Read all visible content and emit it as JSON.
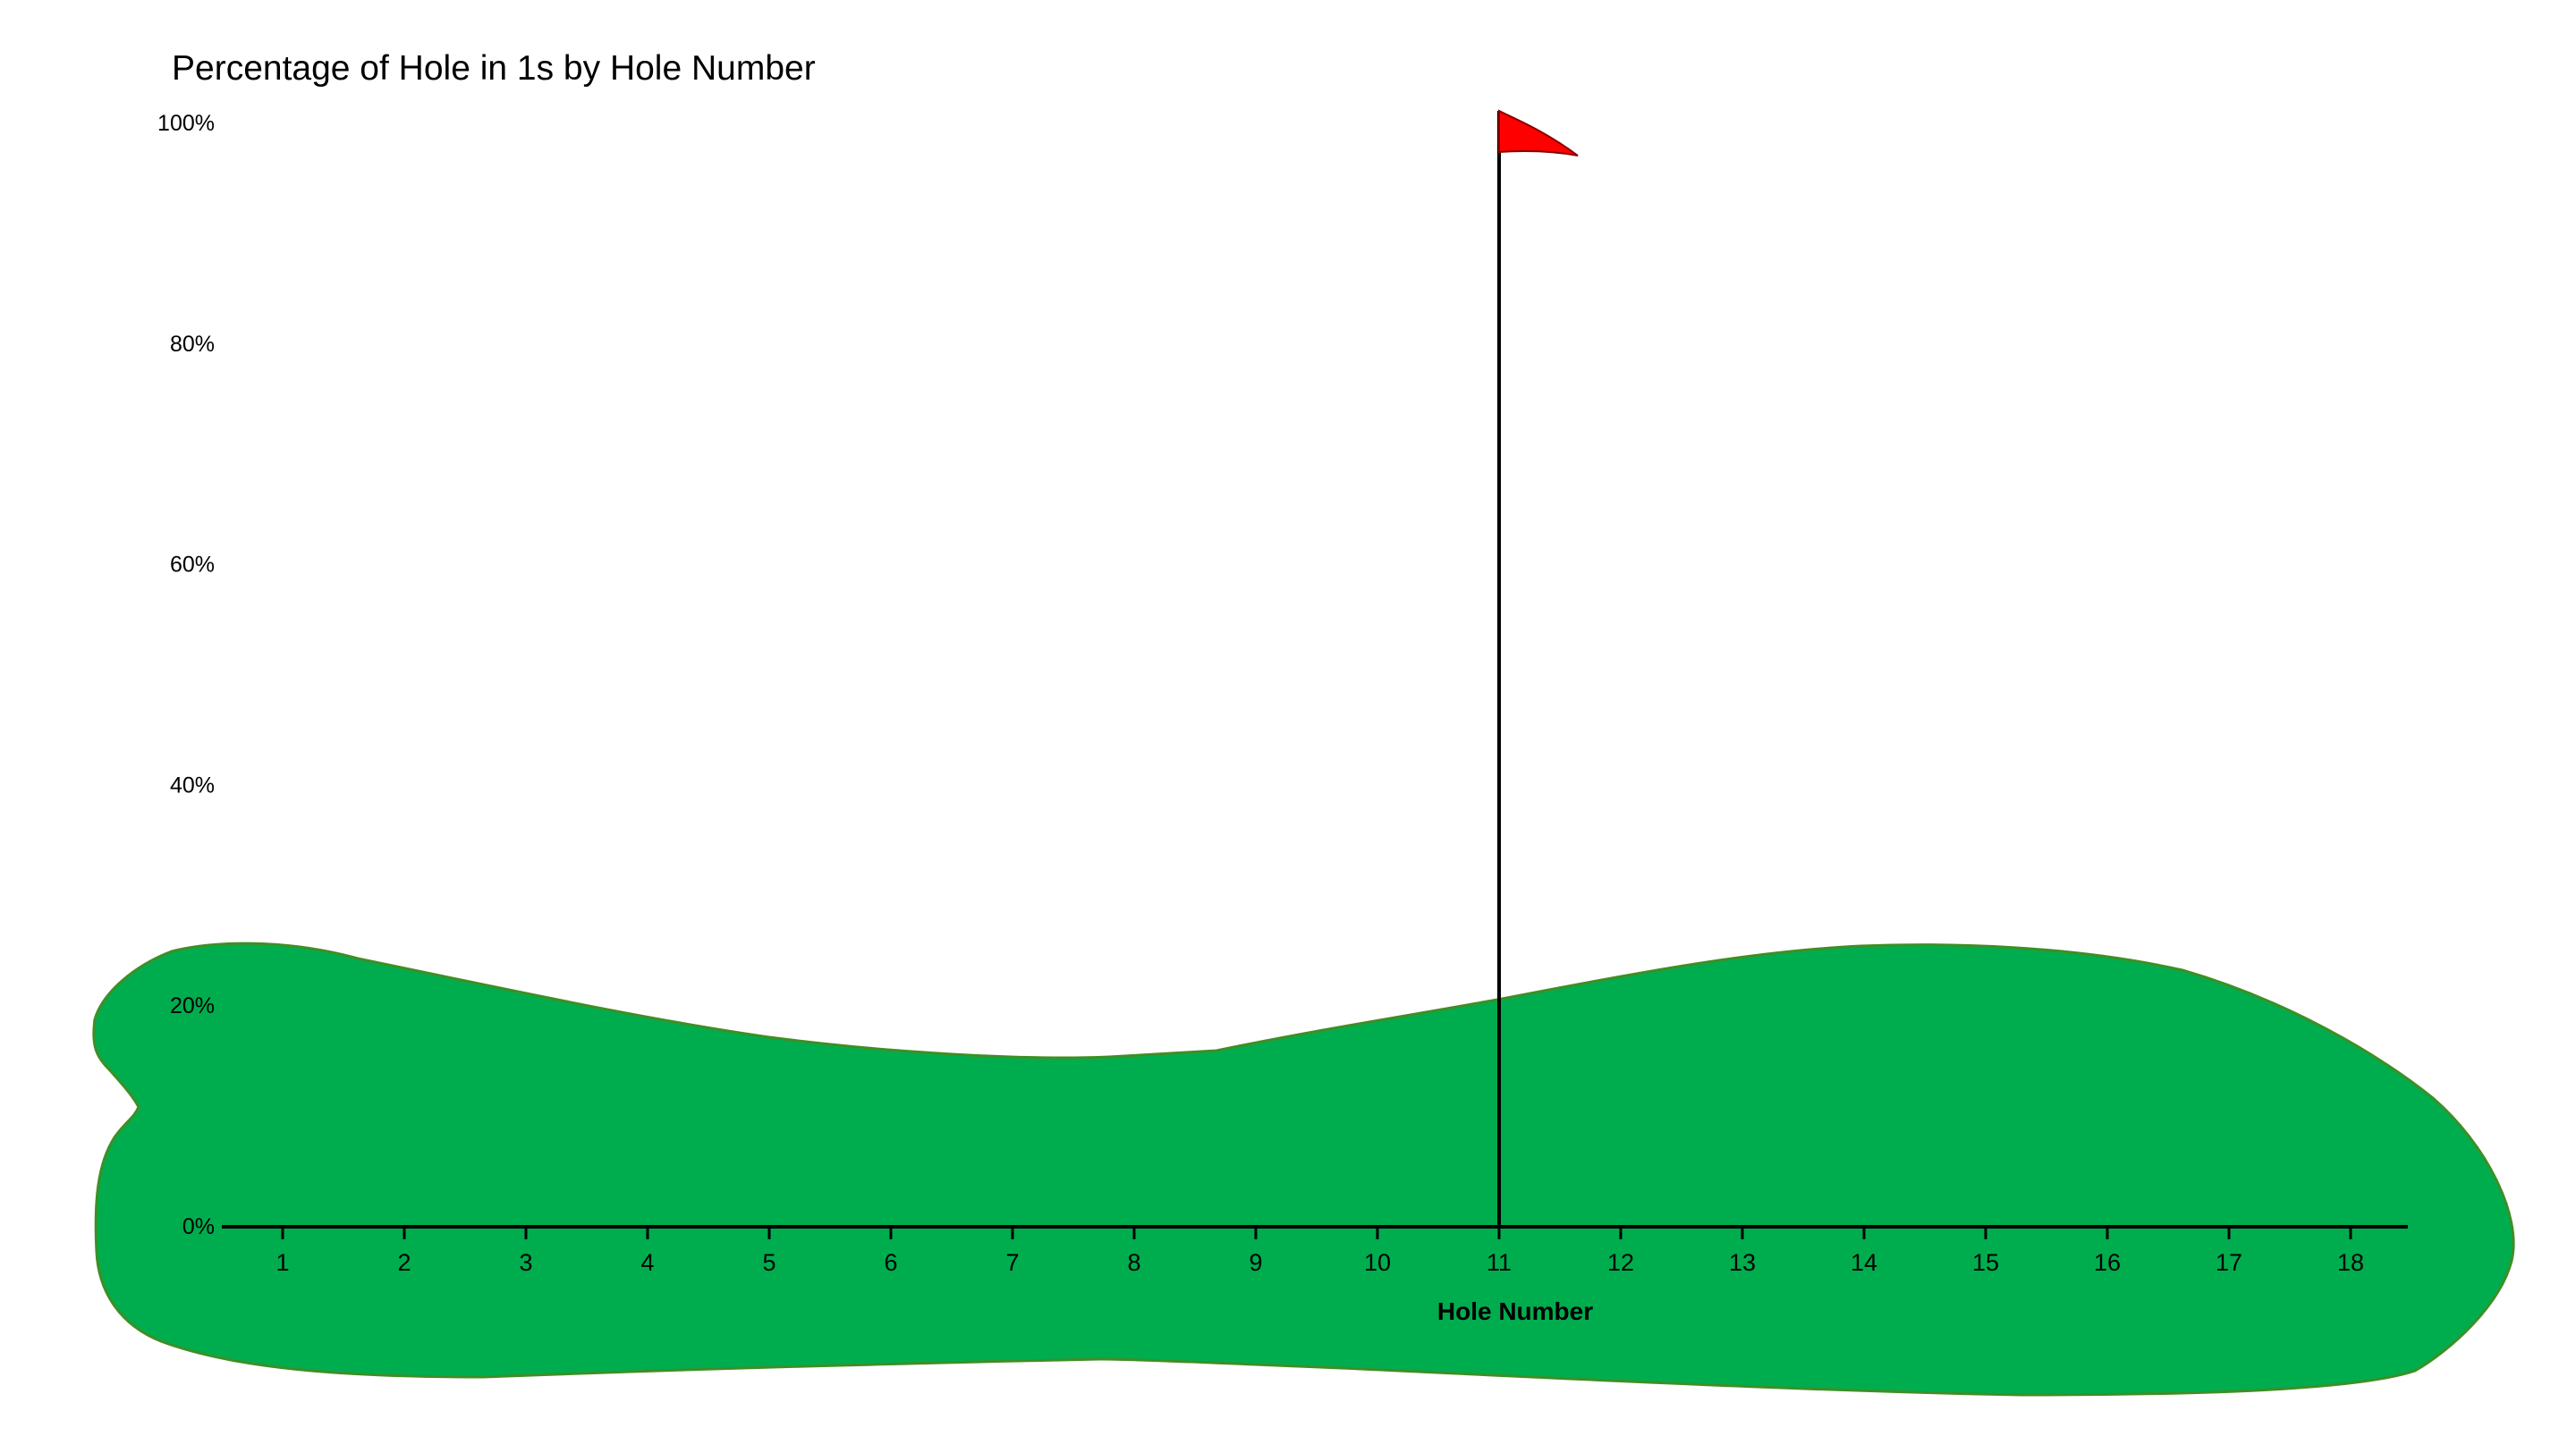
{
  "chart_data": {
    "type": "line",
    "title": "Percentage of Hole in 1s by Hole Number",
    "xlabel": "Hole Number",
    "ylabel": "",
    "categories": [
      "1",
      "2",
      "3",
      "4",
      "5",
      "6",
      "7",
      "8",
      "9",
      "10",
      "11",
      "12",
      "13",
      "14",
      "15",
      "16",
      "17",
      "18"
    ],
    "y_ticks": [
      "0%",
      "20%",
      "40%",
      "60%",
      "80%",
      "100%"
    ],
    "ylim": [
      0,
      1
    ],
    "grid": false,
    "legend": "none",
    "highlight": {
      "category": "11",
      "value": 1.0,
      "marker": "flag"
    },
    "colors": {
      "green": "#00AD4E",
      "green_edge": "#3E8E26",
      "flag": "#FF0000",
      "axis": "#000000"
    }
  }
}
